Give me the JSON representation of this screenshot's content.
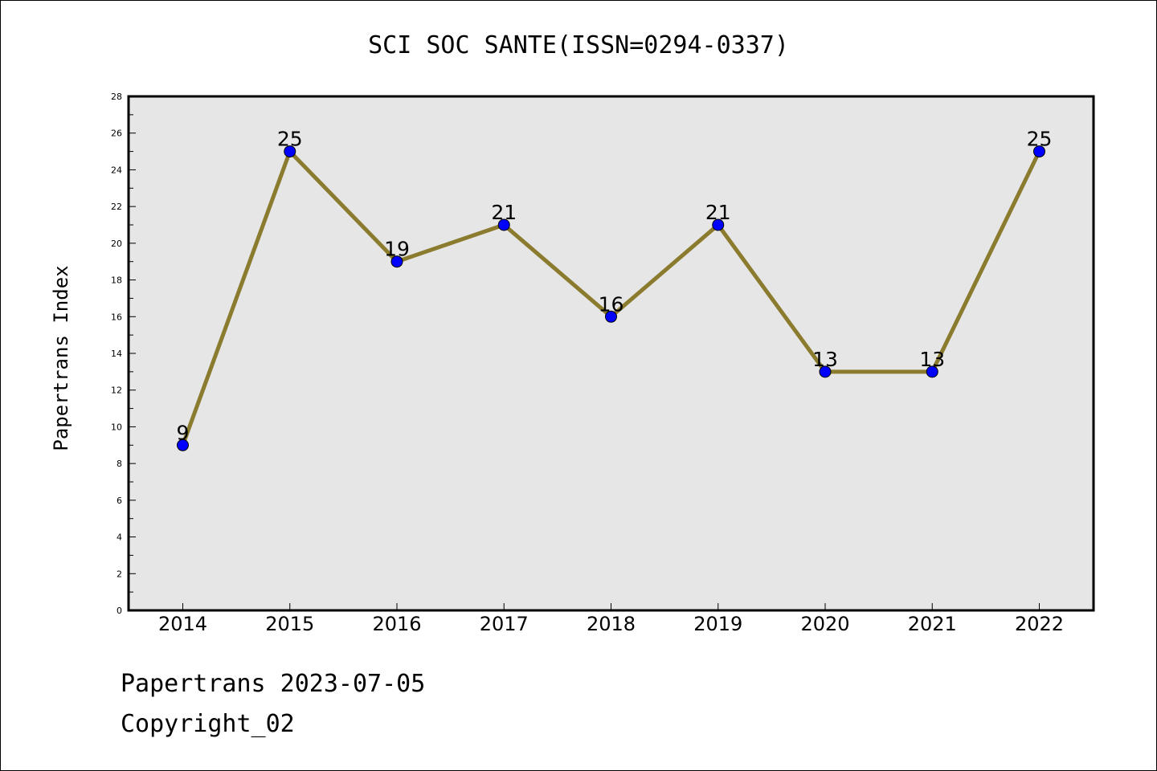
{
  "chart_data": {
    "type": "line",
    "title": "SCI SOC SANTE(ISSN=0294-0337)",
    "xlabel": "",
    "ylabel": "Papertrans Index",
    "categories": [
      "2014",
      "2015",
      "2016",
      "2017",
      "2018",
      "2019",
      "2020",
      "2021",
      "2022"
    ],
    "values": [
      9,
      25,
      19,
      21,
      16,
      21,
      13,
      13,
      25
    ],
    "data_labels": [
      "9",
      "25",
      "19",
      "21",
      "16",
      "21",
      "13",
      "13",
      "25"
    ],
    "ylim": [
      0,
      28
    ],
    "yticks": [
      0,
      2,
      4,
      6,
      8,
      10,
      12,
      14,
      16,
      18,
      20,
      22,
      24,
      26,
      28
    ],
    "ytick_labels": [
      "0",
      "2",
      "4",
      "6",
      "8",
      "10",
      "12",
      "14",
      "16",
      "18",
      "20",
      "22",
      "24",
      "26",
      "28"
    ],
    "grid": false,
    "line_color": "#8B7B2E",
    "marker_color": "#0000FF",
    "plot_background": "#E6E6E6"
  },
  "footer": {
    "date_line": "Papertrans 2023-07-05",
    "copyright": "Copyright_02"
  }
}
